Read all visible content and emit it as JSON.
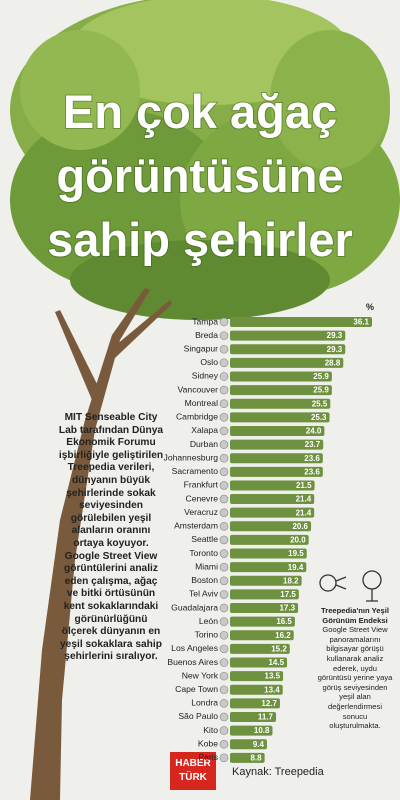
{
  "title_lines": [
    "En çok ağaç",
    "görüntüsüne",
    "sahip şehirler"
  ],
  "chart_data": {
    "type": "bar",
    "orientation": "horizontal",
    "unit_label": "%",
    "categories": [
      "Tampa",
      "Breda",
      "Singapur",
      "Oslo",
      "Sidney",
      "Vancouver",
      "Montreal",
      "Cambridge",
      "Xalapa",
      "Durban",
      "Johannesburg",
      "Sacramento",
      "Frankfurt",
      "Cenevre",
      "Veracruz",
      "Amsterdam",
      "Seattle",
      "Toronto",
      "Miami",
      "Boston",
      "Tel Aviv",
      "Guadalajara",
      "León",
      "Torino",
      "Los Angeles",
      "Buenos Aires",
      "New York",
      "Cape Town",
      "Londra",
      "São Paulo",
      "Kito",
      "Kobe",
      "Paris"
    ],
    "values": [
      36.1,
      29.3,
      29.3,
      28.8,
      25.9,
      25.9,
      25.5,
      25.3,
      24,
      23.7,
      23.6,
      23.6,
      21.5,
      21.4,
      21.4,
      20.6,
      20,
      19.5,
      19.4,
      18.2,
      17.5,
      17.3,
      16.5,
      16.2,
      15.2,
      14.5,
      13.5,
      13.4,
      12.7,
      11.7,
      10.8,
      9.4,
      8.8
    ],
    "value_labels": [
      "36.1",
      "29.3",
      "29.3",
      "28.8",
      "25.9",
      "25.9",
      "25.5",
      "25.3",
      "24.0",
      "23.7",
      "23.6",
      "23.6",
      "21.5",
      "21.4",
      "21.4",
      "20.6",
      "20.0",
      "19.5",
      "19.4",
      "18.2",
      "17.5",
      "17.3",
      "16.5",
      "16.2",
      "15.2",
      "14.5",
      "13.5",
      "13.4",
      "12.7",
      "11.7",
      "10.8",
      "9.4",
      "8.8"
    ],
    "color": "#6e9140"
  },
  "description": "MIT Senseable City Lab tarafından Dünya Ekonomik Forumu işbirliğiyle geliştirilen Treepedia verileri, dünyanın büyük şehirlerinde sokak seviyesinden görülebilen yeşil alanların oranını ortaya koyuyor. Google Street View görüntülerini analiz eden çalışma, ağaç ve bitki örtüsünün kent sokaklarındaki görünürlüğünü ölçerek dünyanın en yeşil sokaklara sahip şehirlerini sıralıyor.",
  "note": {
    "title": "Treepedia'nın Yeşil Görünüm Endeksi",
    "text": "Google Street View panoramalarını bilgisayar görüşü kullanarak analiz ederek, uydu görüntüsü yerine yaya görüş seviyesinden yeşil alan değerlendirmesi sonucu oluşturulmakta."
  },
  "logo": {
    "line1": "HABER",
    "line2": "TÜRK"
  },
  "source": "Kaynak: Treepedia"
}
